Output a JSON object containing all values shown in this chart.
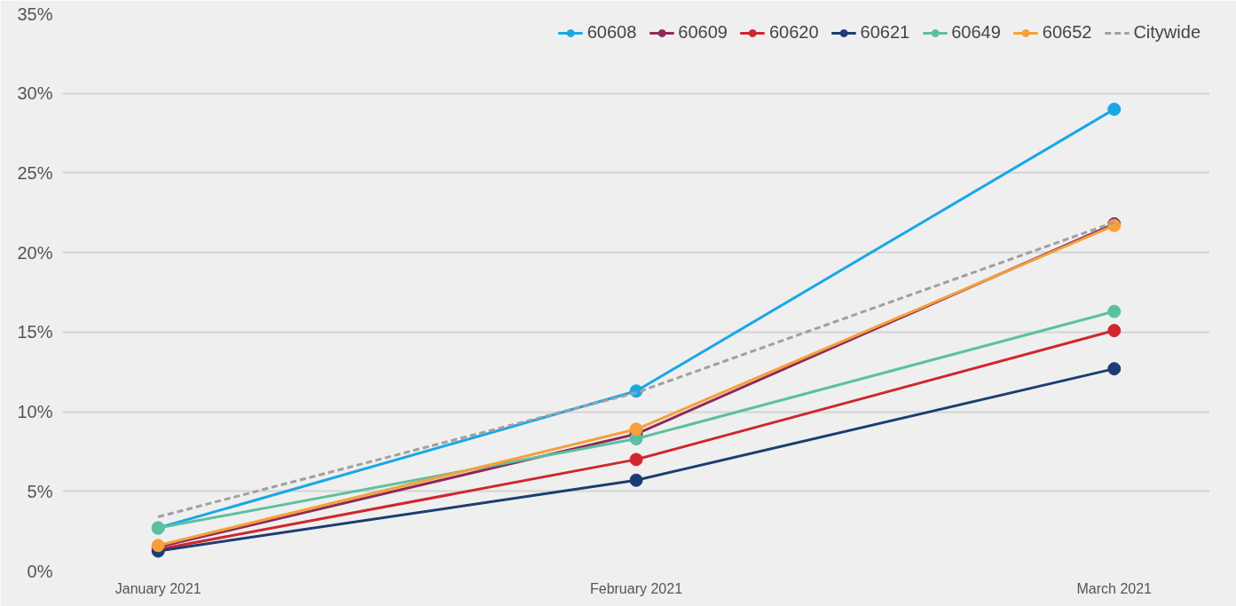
{
  "chart_data": {
    "type": "line",
    "categories": [
      "January 2021",
      "February 2021",
      "March 2021"
    ],
    "series": [
      {
        "name": "60608",
        "color": "#1aa7e6",
        "values": [
          2.7,
          11.3,
          29.0
        ],
        "marker": "circle",
        "line_style": "solid"
      },
      {
        "name": "60609",
        "color": "#8e2a5a",
        "values": [
          1.5,
          8.6,
          21.8
        ],
        "marker": "circle",
        "line_style": "solid"
      },
      {
        "name": "60620",
        "color": "#d0262e",
        "values": [
          1.35,
          7.0,
          15.1
        ],
        "marker": "circle",
        "line_style": "solid"
      },
      {
        "name": "60621",
        "color": "#1c3d73",
        "values": [
          1.25,
          5.7,
          12.7
        ],
        "marker": "circle",
        "line_style": "solid"
      },
      {
        "name": "60649",
        "color": "#5cc0a0",
        "values": [
          2.7,
          8.3,
          16.3
        ],
        "marker": "circle",
        "line_style": "solid"
      },
      {
        "name": "60652",
        "color": "#f5a03a",
        "values": [
          1.6,
          8.9,
          21.7
        ],
        "marker": "circle",
        "line_style": "solid"
      },
      {
        "name": "Citywide",
        "color": "#a0a0a0",
        "values": [
          3.4,
          11.2,
          21.9
        ],
        "marker": "none",
        "line_style": "dashed"
      }
    ],
    "ylim": [
      0,
      35
    ],
    "yticks": [
      {
        "value": 0,
        "label": "0%"
      },
      {
        "value": 5,
        "label": "5%"
      },
      {
        "value": 10,
        "label": "10%"
      },
      {
        "value": 15,
        "label": "15%"
      },
      {
        "value": 20,
        "label": "20%"
      },
      {
        "value": 25,
        "label": "25%"
      },
      {
        "value": 30,
        "label": "30%"
      },
      {
        "value": 35,
        "label": "35%"
      }
    ],
    "grid": "y",
    "legend": "top right"
  }
}
